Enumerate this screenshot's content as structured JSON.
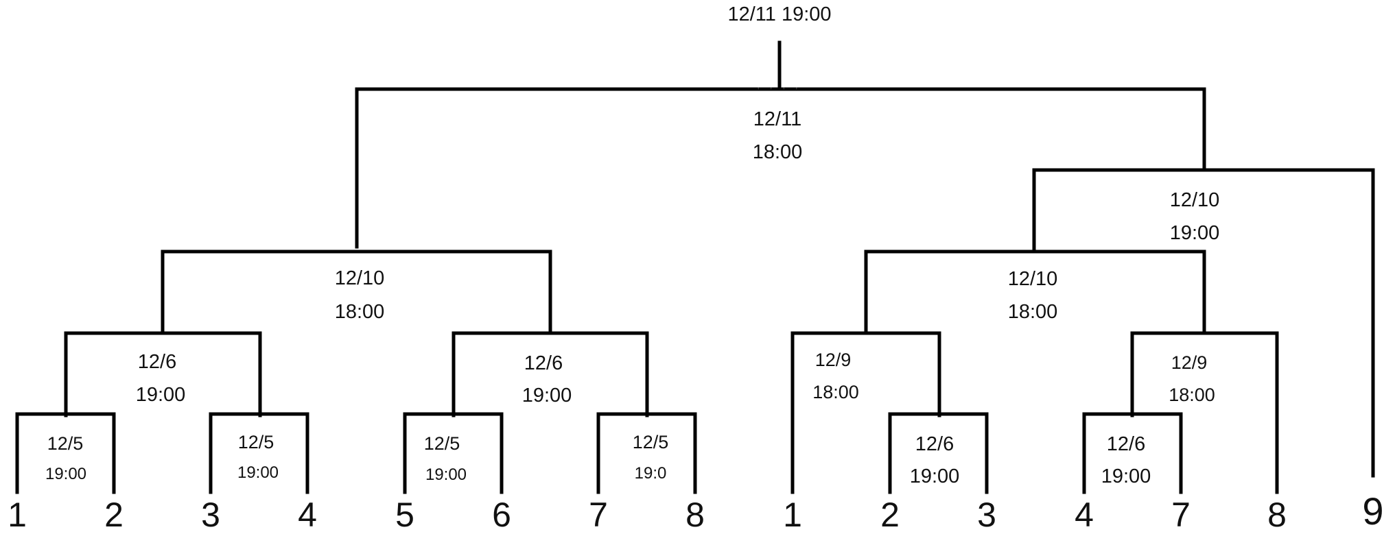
{
  "final": {
    "time": "12/11 19:00"
  },
  "semifinals": {
    "center": {
      "date": "12/11",
      "time": "18:00"
    }
  },
  "left_bracket": {
    "round_of_4": {
      "date": "12/10",
      "time": "18:00"
    },
    "quarter_a": {
      "date": "12/6",
      "time": "19:00"
    },
    "quarter_b": {
      "date": "12/6",
      "time": "19:00"
    },
    "first_round": [
      {
        "date": "12/5",
        "time": "19:00"
      },
      {
        "date": "12/5",
        "time": "19:00"
      },
      {
        "date": "12/5",
        "time": "19:00"
      },
      {
        "date": "12/5",
        "time": "19:0"
      }
    ],
    "seeds": [
      "1",
      "2",
      "3",
      "4",
      "5",
      "6",
      "7",
      "8"
    ]
  },
  "right_bracket": {
    "upper": {
      "date": "12/10",
      "time": "19:00"
    },
    "round_of_4": {
      "date": "12/10",
      "time": "18:00"
    },
    "quarter_a": {
      "date": "12/9",
      "time": "18:00"
    },
    "quarter_b": {
      "date": "12/9",
      "time": "18:00"
    },
    "first_round": [
      {
        "date": "12/6",
        "time": "19:00"
      },
      {
        "date": "12/6",
        "time": "19:00"
      }
    ],
    "seeds": [
      "1",
      "2",
      "3",
      "4",
      "7",
      "8",
      "9"
    ]
  }
}
